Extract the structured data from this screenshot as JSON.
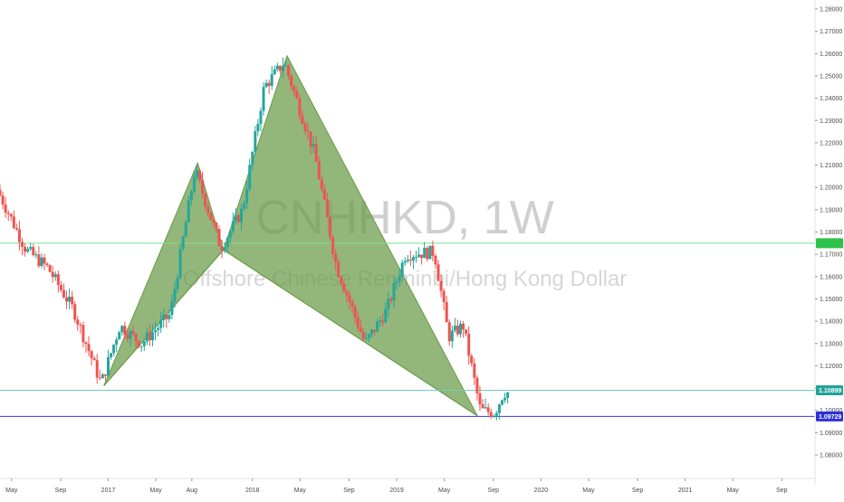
{
  "chart_data": {
    "type": "candlestick",
    "watermark": {
      "symbol": "CNHHKD, 1W",
      "description": "Offshore Chinese Renminbi/Hong Kong Dollar"
    },
    "ylim": [
      1.08,
      1.285
    ],
    "yticks": [
      "1.28000",
      "1.27000",
      "1.26000",
      "1.25000",
      "1.24000",
      "1.23000",
      "1.22000",
      "1.21000",
      "1.20000",
      "1.19000",
      "1.18000",
      "1.17000",
      "1.16000",
      "1.15000",
      "1.14000",
      "1.13000",
      "1.12000",
      "1.11000",
      "1.10000",
      "1.09000",
      "1.08000"
    ],
    "xlim": [
      2016.25,
      2021.9
    ],
    "xticks": [
      {
        "label": "May",
        "t": 2016.33
      },
      {
        "label": "Sep",
        "t": 2016.67
      },
      {
        "label": "2017",
        "t": 2017.0
      },
      {
        "label": "May",
        "t": 2017.33
      },
      {
        "label": "Aug",
        "t": 2017.58
      },
      {
        "label": "2018",
        "t": 2018.0
      },
      {
        "label": "May",
        "t": 2018.33
      },
      {
        "label": "Sep",
        "t": 2018.67
      },
      {
        "label": "2019",
        "t": 2019.0
      },
      {
        "label": "May",
        "t": 2019.33
      },
      {
        "label": "Sep",
        "t": 2019.67
      },
      {
        "label": "2020",
        "t": 2020.0
      },
      {
        "label": "May",
        "t": 2020.33
      },
      {
        "label": "Sep",
        "t": 2020.67
      },
      {
        "label": "2021",
        "t": 2021.0
      },
      {
        "label": "May",
        "t": 2021.33
      },
      {
        "label": "Sep",
        "t": 2021.67
      }
    ],
    "horizontal_lines": [
      {
        "price": 1.175,
        "color": "#7ee08a",
        "label": "",
        "tag_color": "#2ec24a"
      },
      {
        "price": 1.109,
        "color": "#6fcfbf",
        "label": "1.10899",
        "tag_color": "#22a39a"
      },
      {
        "price": 1.0973,
        "color": "#3a3ad6",
        "label": "1.09729",
        "tag_color": "#2f2fd8"
      }
    ],
    "harmonic_pattern": {
      "fill": "#6a9a47",
      "points": [
        {
          "t": 2016.97,
          "p": 1.111
        },
        {
          "t": 2017.62,
          "p": 1.211
        },
        {
          "t": 2017.8,
          "p": 1.172
        },
        {
          "t": 2018.24,
          "p": 1.259
        },
        {
          "t": 2019.56,
          "p": 1.0975
        }
      ]
    },
    "bullish_color": "#26a69a",
    "bearish_color": "#ef5350",
    "key_levels": [
      {
        "t": 2016.25,
        "p": 1.199
      },
      {
        "t": 2016.45,
        "p": 1.172
      },
      {
        "t": 2016.6,
        "p": 1.164
      },
      {
        "t": 2016.78,
        "p": 1.145
      },
      {
        "t": 2016.97,
        "p": 1.112
      },
      {
        "t": 2017.1,
        "p": 1.138
      },
      {
        "t": 2017.25,
        "p": 1.13
      },
      {
        "t": 2017.45,
        "p": 1.143
      },
      {
        "t": 2017.62,
        "p": 1.208
      },
      {
        "t": 2017.8,
        "p": 1.173
      },
      {
        "t": 2017.95,
        "p": 1.19
      },
      {
        "t": 2018.1,
        "p": 1.245
      },
      {
        "t": 2018.24,
        "p": 1.256
      },
      {
        "t": 2018.45,
        "p": 1.215
      },
      {
        "t": 2018.6,
        "p": 1.165
      },
      {
        "t": 2018.8,
        "p": 1.13
      },
      {
        "t": 2018.95,
        "p": 1.145
      },
      {
        "t": 2019.08,
        "p": 1.17
      },
      {
        "t": 2019.28,
        "p": 1.171
      },
      {
        "t": 2019.38,
        "p": 1.133
      },
      {
        "t": 2019.48,
        "p": 1.138
      },
      {
        "t": 2019.6,
        "p": 1.1
      },
      {
        "t": 2019.7,
        "p": 1.099
      },
      {
        "t": 2019.76,
        "p": 1.108
      }
    ]
  }
}
